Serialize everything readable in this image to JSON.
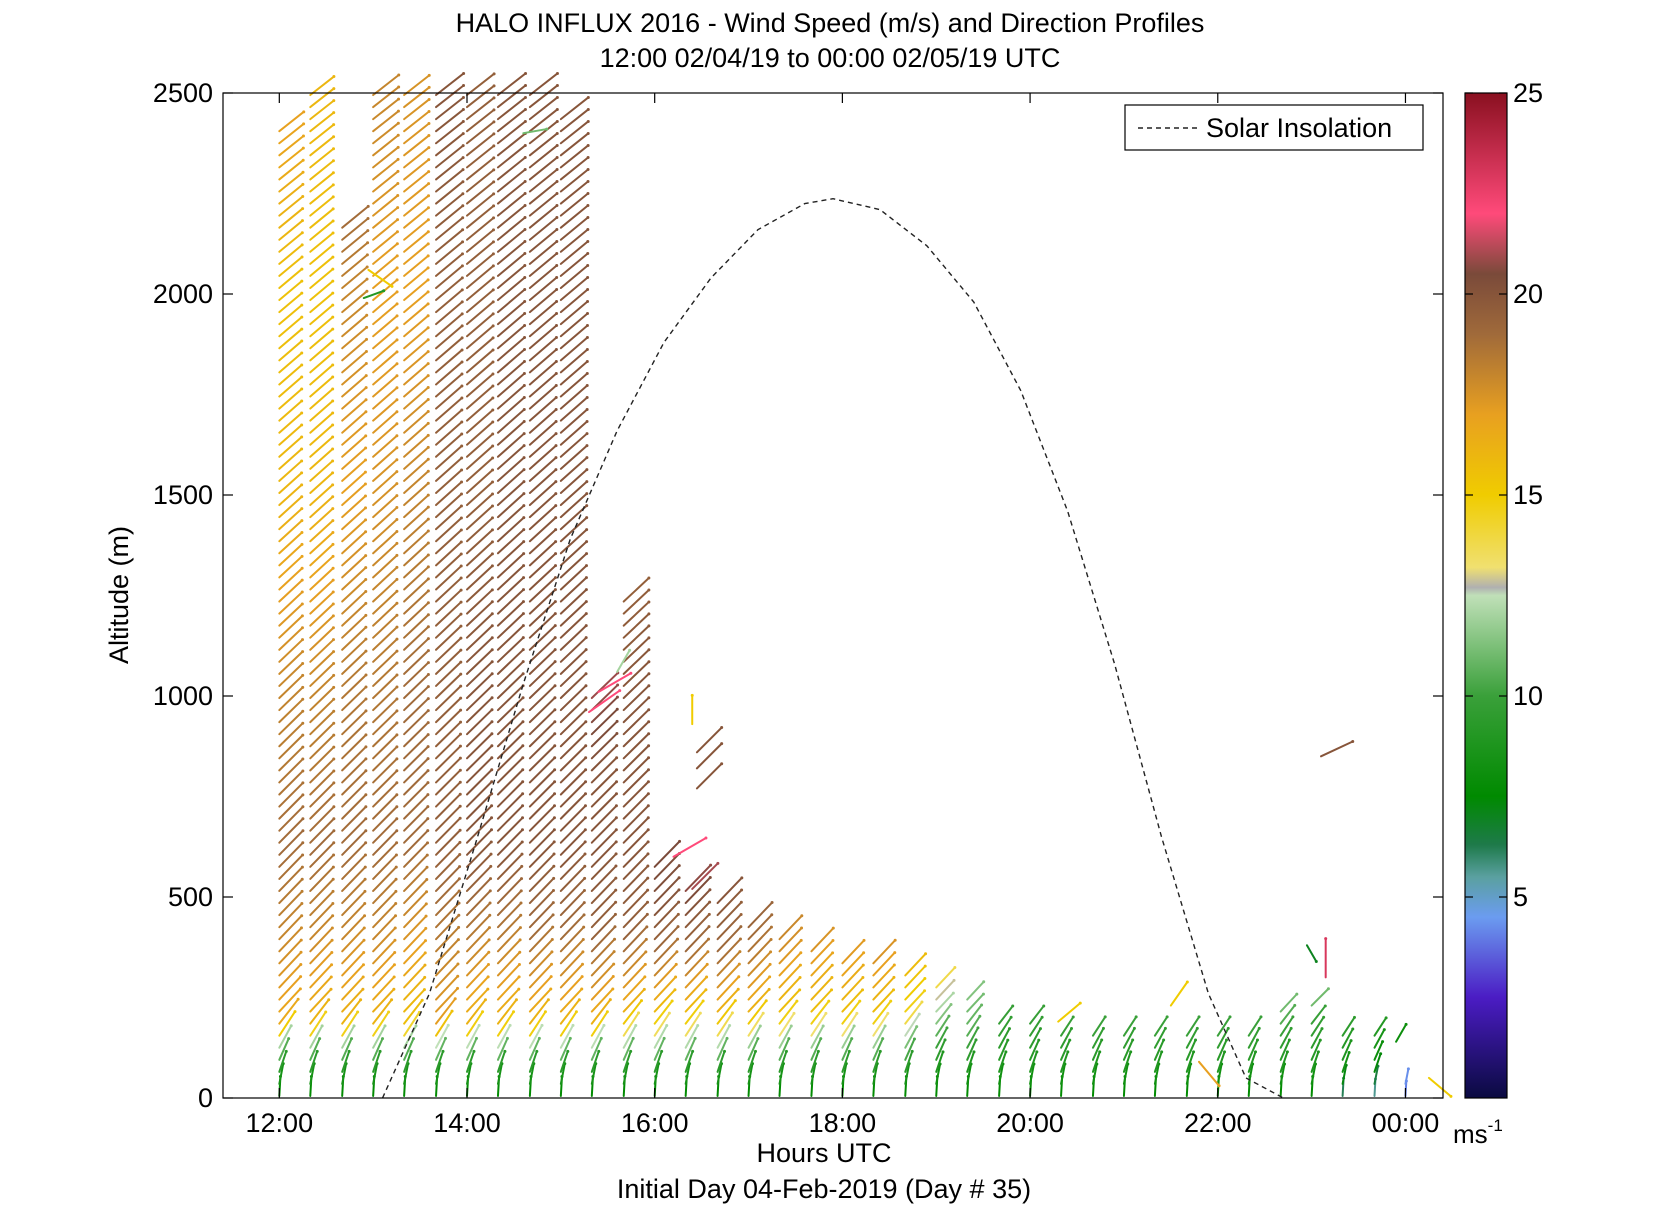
{
  "chart_data": {
    "type": "wind-profile-quiver",
    "title": "HALO INFLUX 2016 - Wind Speed (m/s) and Direction Profiles",
    "subtitle": "12:00 02/04/19 to 00:00 02/05/19  UTC",
    "xlabel": "Hours UTC",
    "xlabel2": "Initial Day 04-Feb-2019 (Day # 35)",
    "ylabel": "Altitude (m)",
    "xlim": [
      11.4,
      24.4
    ],
    "ylim": [
      0,
      2500
    ],
    "xticks": [
      {
        "value": 12,
        "label": "12:00"
      },
      {
        "value": 14,
        "label": "14:00"
      },
      {
        "value": 16,
        "label": "16:00"
      },
      {
        "value": 18,
        "label": "18:00"
      },
      {
        "value": 20,
        "label": "20:00"
      },
      {
        "value": 22,
        "label": "22:00"
      },
      {
        "value": 24,
        "label": "00:00"
      }
    ],
    "yticks": [
      0,
      500,
      1000,
      1500,
      2000,
      2500
    ],
    "legend": {
      "label": "Solar Insolation",
      "placement": "top-right",
      "style": "dashed"
    },
    "colorbar": {
      "range": [
        0,
        25
      ],
      "ticks": [
        5,
        10,
        15,
        20,
        25
      ],
      "unit_base": "ms",
      "unit_exp": "-1",
      "stops": [
        {
          "v": 0,
          "c": "#0a0a40"
        },
        {
          "v": 2.5,
          "c": "#4b1cc4"
        },
        {
          "v": 4.5,
          "c": "#6b9cf0"
        },
        {
          "v": 5.5,
          "c": "#5aa0a0"
        },
        {
          "v": 6.3,
          "c": "#1e7a4a"
        },
        {
          "v": 7.5,
          "c": "#008a00"
        },
        {
          "v": 10.0,
          "c": "#3aa03a"
        },
        {
          "v": 12.5,
          "c": "#c0e0b8"
        },
        {
          "v": 12.7,
          "c": "#b0b0b0"
        },
        {
          "v": 13.2,
          "c": "#f0e070"
        },
        {
          "v": 15.0,
          "c": "#f0cc00"
        },
        {
          "v": 17.0,
          "c": "#e8a020"
        },
        {
          "v": 19.0,
          "c": "#a06a3a"
        },
        {
          "v": 20.5,
          "c": "#7a4a3a"
        },
        {
          "v": 22.0,
          "c": "#ff4a7a"
        },
        {
          "v": 25.0,
          "c": "#8a1020"
        }
      ]
    },
    "solar_insolation": {
      "times": [
        13.1,
        13.6,
        14.1,
        14.6,
        15.1,
        15.6,
        16.1,
        16.6,
        17.1,
        17.6,
        17.9,
        18.4,
        18.9,
        19.4,
        19.9,
        20.4,
        20.9,
        21.4,
        21.9,
        22.3,
        22.7
      ],
      "altitudes": [
        0,
        260,
        640,
        1030,
        1390,
        1660,
        1880,
        2040,
        2160,
        2225,
        2237,
        2210,
        2120,
        1980,
        1760,
        1460,
        1080,
        650,
        260,
        50,
        0
      ]
    },
    "profiles": [
      {
        "time": 12.0,
        "range": [
          0,
          2420
        ],
        "speed": {
          "0": 7.5,
          "70": 9.5,
          "120": 11.5,
          "170": 16.5,
          "400": 18,
          "600": 19,
          "1000": 18,
          "1500": 16,
          "2000": 15.5,
          "2420": 17
        }
      },
      {
        "time": 12.33,
        "range": [
          0,
          2500
        ],
        "speed": {
          "0": 7.5,
          "70": 9.5,
          "120": 11.5,
          "170": 16,
          "400": 18,
          "600": 19,
          "1000": 18,
          "1500": 16,
          "2000": 15.5,
          "2500": 16
        }
      },
      {
        "time": 12.67,
        "range": [
          0,
          2180
        ],
        "speed": {
          "0": 7.5,
          "70": 9.5,
          "120": 11.5,
          "170": 16,
          "400": 18,
          "600": 19,
          "1000": 18.5,
          "1500": 17,
          "2000": 18,
          "2180": 19
        }
      },
      {
        "time": 13.0,
        "range": [
          0,
          2500
        ],
        "speed": {
          "0": 7.5,
          "70": 9.5,
          "120": 11.5,
          "170": 16,
          "400": 18,
          "600": 19,
          "1000": 18.5,
          "1500": 17.5,
          "2000": 17,
          "2500": 18
        }
      },
      {
        "time": 13.33,
        "range": [
          0,
          2500
        ],
        "speed": {
          "0": 7.5,
          "70": 9.5,
          "120": 11.5,
          "170": 15.5,
          "400": 17.5,
          "600": 19,
          "1000": 19,
          "1500": 18,
          "2000": 17,
          "2500": 17.5
        }
      },
      {
        "time": 13.67,
        "range": [
          0,
          2500
        ],
        "speed": {
          "0": 7.5,
          "70": 9.5,
          "120": 12,
          "170": 17,
          "400": 18.5,
          "600": 19.5,
          "1000": 19.5,
          "1500": 19.5,
          "2000": 19.5,
          "2500": 20
        }
      },
      {
        "time": 14.0,
        "range": [
          0,
          2500
        ],
        "speed": {
          "0": 7.5,
          "70": 9.5,
          "120": 12,
          "170": 16,
          "400": 18.5,
          "600": 20,
          "1000": 20,
          "1500": 19.5,
          "2000": 19.5,
          "2500": 19.5
        }
      },
      {
        "time": 14.33,
        "range": [
          0,
          2500
        ],
        "speed": {
          "0": 7.5,
          "70": 9.5,
          "120": 12,
          "170": 16,
          "400": 18.5,
          "600": 20,
          "1000": 20,
          "1500": 20,
          "2000": 20,
          "2500": 20
        }
      },
      {
        "time": 14.67,
        "range": [
          0,
          2500
        ],
        "speed": {
          "0": 7.5,
          "70": 9.5,
          "120": 12,
          "170": 16,
          "400": 19,
          "600": 20,
          "1000": 20,
          "1500": 20,
          "2000": 20,
          "2500": 20
        }
      },
      {
        "time": 15.0,
        "range": [
          0,
          2460
        ],
        "speed": {
          "0": 7.5,
          "70": 9.5,
          "120": 12,
          "170": 16,
          "400": 19,
          "600": 20,
          "1000": 20,
          "1500": 20,
          "2000": 20,
          "2460": 20
        }
      },
      {
        "time": 15.33,
        "range": [
          0,
          1020
        ],
        "speed": {
          "0": 7.5,
          "70": 9.5,
          "120": 12,
          "170": 16,
          "400": 19.5,
          "600": 20,
          "800": 20,
          "1020": 21
        }
      },
      {
        "time": 15.67,
        "range": [
          0,
          1250
        ],
        "speed": {
          "0": 7.5,
          "70": 9.5,
          "120": 12,
          "200": 16,
          "400": 19.5,
          "600": 20,
          "1000": 20,
          "1250": 19.5
        }
      },
      {
        "time": 16.0,
        "range": [
          0,
          580
        ],
        "speed": {
          "0": 7.5,
          "70": 9.5,
          "120": 12,
          "200": 15.5,
          "350": 19,
          "450": 20,
          "580": 20.5
        }
      },
      {
        "time": 16.33,
        "range": [
          0,
          540
        ],
        "speed": {
          "0": 7.5,
          "70": 9.5,
          "120": 12,
          "200": 15.5,
          "350": 19,
          "450": 20,
          "540": 21
        }
      },
      {
        "time": 16.67,
        "range": [
          0,
          490
        ],
        "speed": {
          "0": 7.5,
          "70": 9.5,
          "120": 12,
          "200": 16,
          "350": 19,
          "490": 20
        }
      },
      {
        "time": 17.0,
        "range": [
          0,
          450
        ],
        "speed": {
          "0": 7.5,
          "70": 9.5,
          "120": 11.5,
          "200": 16,
          "350": 18.5,
          "450": 19.5
        }
      },
      {
        "time": 17.33,
        "range": [
          0,
          410
        ],
        "speed": {
          "0": 7.5,
          "70": 9.5,
          "120": 11.5,
          "200": 15.5,
          "350": 17.5,
          "410": 18
        }
      },
      {
        "time": 17.67,
        "range": [
          0,
          370
        ],
        "speed": {
          "0": 7.5,
          "70": 9.5,
          "120": 11.5,
          "200": 15.5,
          "370": 17.5
        }
      },
      {
        "time": 18.0,
        "range": [
          0,
          360
        ],
        "speed": {
          "0": 7.5,
          "70": 9.5,
          "120": 11.5,
          "200": 15.5,
          "360": 17.5
        }
      },
      {
        "time": 18.33,
        "range": [
          0,
          340
        ],
        "speed": {
          "0": 7.5,
          "70": 9.5,
          "120": 11.5,
          "200": 15.5,
          "340": 17.5
        }
      },
      {
        "time": 18.67,
        "range": [
          0,
          330
        ],
        "speed": {
          "0": 7.5,
          "70": 9.5,
          "120": 11,
          "200": 14.5,
          "330": 16
        }
      },
      {
        "time": 19.0,
        "range": [
          0,
          280
        ],
        "speed": {
          "0": 7.5,
          "70": 9,
          "150": 10.5,
          "250": 13,
          "280": 14
        }
      },
      {
        "time": 19.33,
        "range": [
          0,
          260
        ],
        "speed": {
          "0": 7.5,
          "70": 9,
          "150": 10.5,
          "260": 11.5
        }
      },
      {
        "time": 19.67,
        "range": [
          0,
          210
        ],
        "speed": {
          "0": 7.5,
          "70": 9,
          "210": 10
        }
      },
      {
        "time": 20.0,
        "range": [
          0,
          200
        ],
        "speed": {
          "0": 7.5,
          "70": 9,
          "200": 10
        }
      },
      {
        "time": 20.33,
        "range": [
          0,
          170
        ],
        "speed": {
          "0": 7.5,
          "70": 9,
          "170": 10
        }
      },
      {
        "time": 20.67,
        "range": [
          0,
          160
        ],
        "speed": {
          "0": 7.5,
          "70": 9,
          "160": 10
        }
      },
      {
        "time": 21.0,
        "range": [
          0,
          160
        ],
        "speed": {
          "0": 7.5,
          "70": 9,
          "160": 10
        }
      },
      {
        "time": 21.33,
        "range": [
          0,
          160
        ],
        "speed": {
          "0": 7.5,
          "70": 9,
          "160": 10
        }
      },
      {
        "time": 21.67,
        "range": [
          0,
          160
        ],
        "speed": {
          "0": 7.5,
          "70": 9,
          "160": 10
        }
      },
      {
        "time": 22.0,
        "range": [
          0,
          160
        ],
        "speed": {
          "0": 7.5,
          "70": 9,
          "160": 10
        }
      },
      {
        "time": 22.33,
        "range": [
          0,
          160
        ],
        "speed": {
          "0": 7.5,
          "70": 9,
          "160": 10
        }
      },
      {
        "time": 22.67,
        "range": [
          0,
          240
        ],
        "speed": {
          "0": 7.5,
          "70": 9,
          "160": 10,
          "240": 11.5
        }
      },
      {
        "time": 23.0,
        "range": [
          0,
          200
        ],
        "speed": {
          "0": 7.5,
          "70": 9,
          "200": 10
        }
      },
      {
        "time": 23.33,
        "range": [
          0,
          160
        ],
        "speed": {
          "0": 6,
          "70": 8.5,
          "160": 9.5
        }
      },
      {
        "time": 23.67,
        "range": [
          0,
          180
        ],
        "speed": {
          "0": 5.5,
          "70": 7.5,
          "180": 9.5
        }
      },
      {
        "time": 24.0,
        "range": [
          0,
          60
        ],
        "speed": {
          "0": 4,
          "60": 4.5
        }
      }
    ],
    "sparse_vectors": [
      {
        "time": 12.95,
        "alt": 2060,
        "speed": 15,
        "dir": 305
      },
      {
        "time": 12.9,
        "alt": 1990,
        "speed": 9,
        "dir": 250
      },
      {
        "time": 14.6,
        "alt": 2400,
        "speed": 11,
        "dir": 260
      },
      {
        "time": 15.6,
        "alt": 1060,
        "speed": 12,
        "dir": 210
      },
      {
        "time": 15.4,
        "alt": 1010,
        "speed": 22,
        "dir": 240
      },
      {
        "time": 15.3,
        "alt": 960,
        "speed": 22,
        "dir": 235
      },
      {
        "time": 16.4,
        "alt": 930,
        "speed": 15,
        "dir": 180
      },
      {
        "time": 16.45,
        "alt": 860,
        "speed": 20,
        "dir": 225
      },
      {
        "time": 16.45,
        "alt": 820,
        "speed": 20,
        "dir": 225
      },
      {
        "time": 16.45,
        "alt": 770,
        "speed": 20,
        "dir": 225
      },
      {
        "time": 16.2,
        "alt": 600,
        "speed": 22,
        "dir": 240
      },
      {
        "time": 16.4,
        "alt": 520,
        "speed": 21,
        "dir": 225
      },
      {
        "time": 20.3,
        "alt": 190,
        "speed": 15,
        "dir": 230
      },
      {
        "time": 21.5,
        "alt": 230,
        "speed": 15,
        "dir": 215
      },
      {
        "time": 21.8,
        "alt": 90,
        "speed": 17,
        "dir": 320
      },
      {
        "time": 23.1,
        "alt": 850,
        "speed": 20,
        "dir": 245
      },
      {
        "time": 22.95,
        "alt": 380,
        "speed": 7,
        "dir": 330
      },
      {
        "time": 23.15,
        "alt": 300,
        "speed": 23,
        "dir": 180
      },
      {
        "time": 23.0,
        "alt": 230,
        "speed": 11,
        "dir": 225
      },
      {
        "time": 23.9,
        "alt": 140,
        "speed": 8,
        "dir": 210
      },
      {
        "time": 24.25,
        "alt": 50,
        "speed": 15,
        "dir": 310
      }
    ]
  }
}
